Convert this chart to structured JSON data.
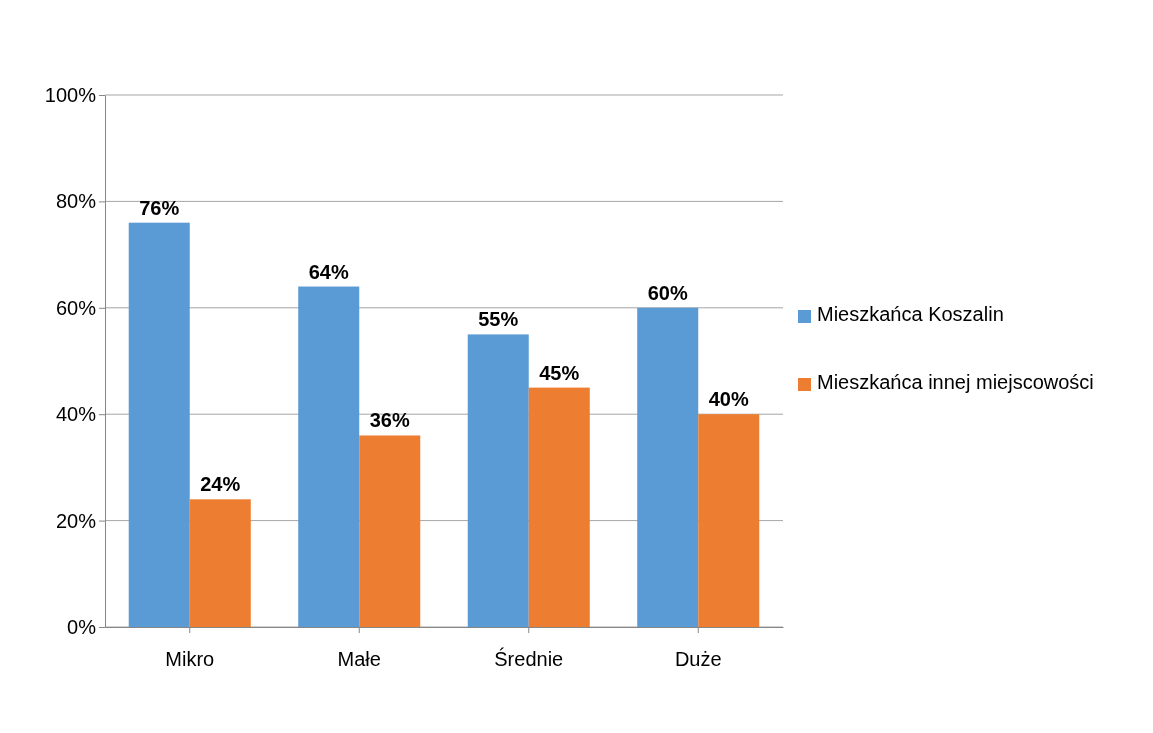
{
  "chart_data": {
    "type": "bar",
    "categories": [
      "Mikro",
      "Małe",
      "Średnie",
      "Duże"
    ],
    "series": [
      {
        "name": "Mieszkańca Koszalin",
        "color": "#5b9bd5",
        "values": [
          76,
          64,
          55,
          60
        ],
        "value_labels": [
          "76%",
          "64%",
          "55%",
          "60%"
        ]
      },
      {
        "name": "Mieszkańca innej miejscowości",
        "color": "#ed7d31",
        "values": [
          24,
          36,
          45,
          40
        ],
        "value_labels": [
          "24%",
          "36%",
          "45%",
          "40%"
        ]
      }
    ],
    "ylim": [
      0,
      100
    ],
    "yticks": [
      {
        "value": 0,
        "label": "0%"
      },
      {
        "value": 20,
        "label": "20%"
      },
      {
        "value": 40,
        "label": "40%"
      },
      {
        "value": 60,
        "label": "60%"
      },
      {
        "value": 80,
        "label": "80%"
      },
      {
        "value": 100,
        "label": "100%"
      }
    ],
    "grid": "y",
    "legend": "right"
  }
}
